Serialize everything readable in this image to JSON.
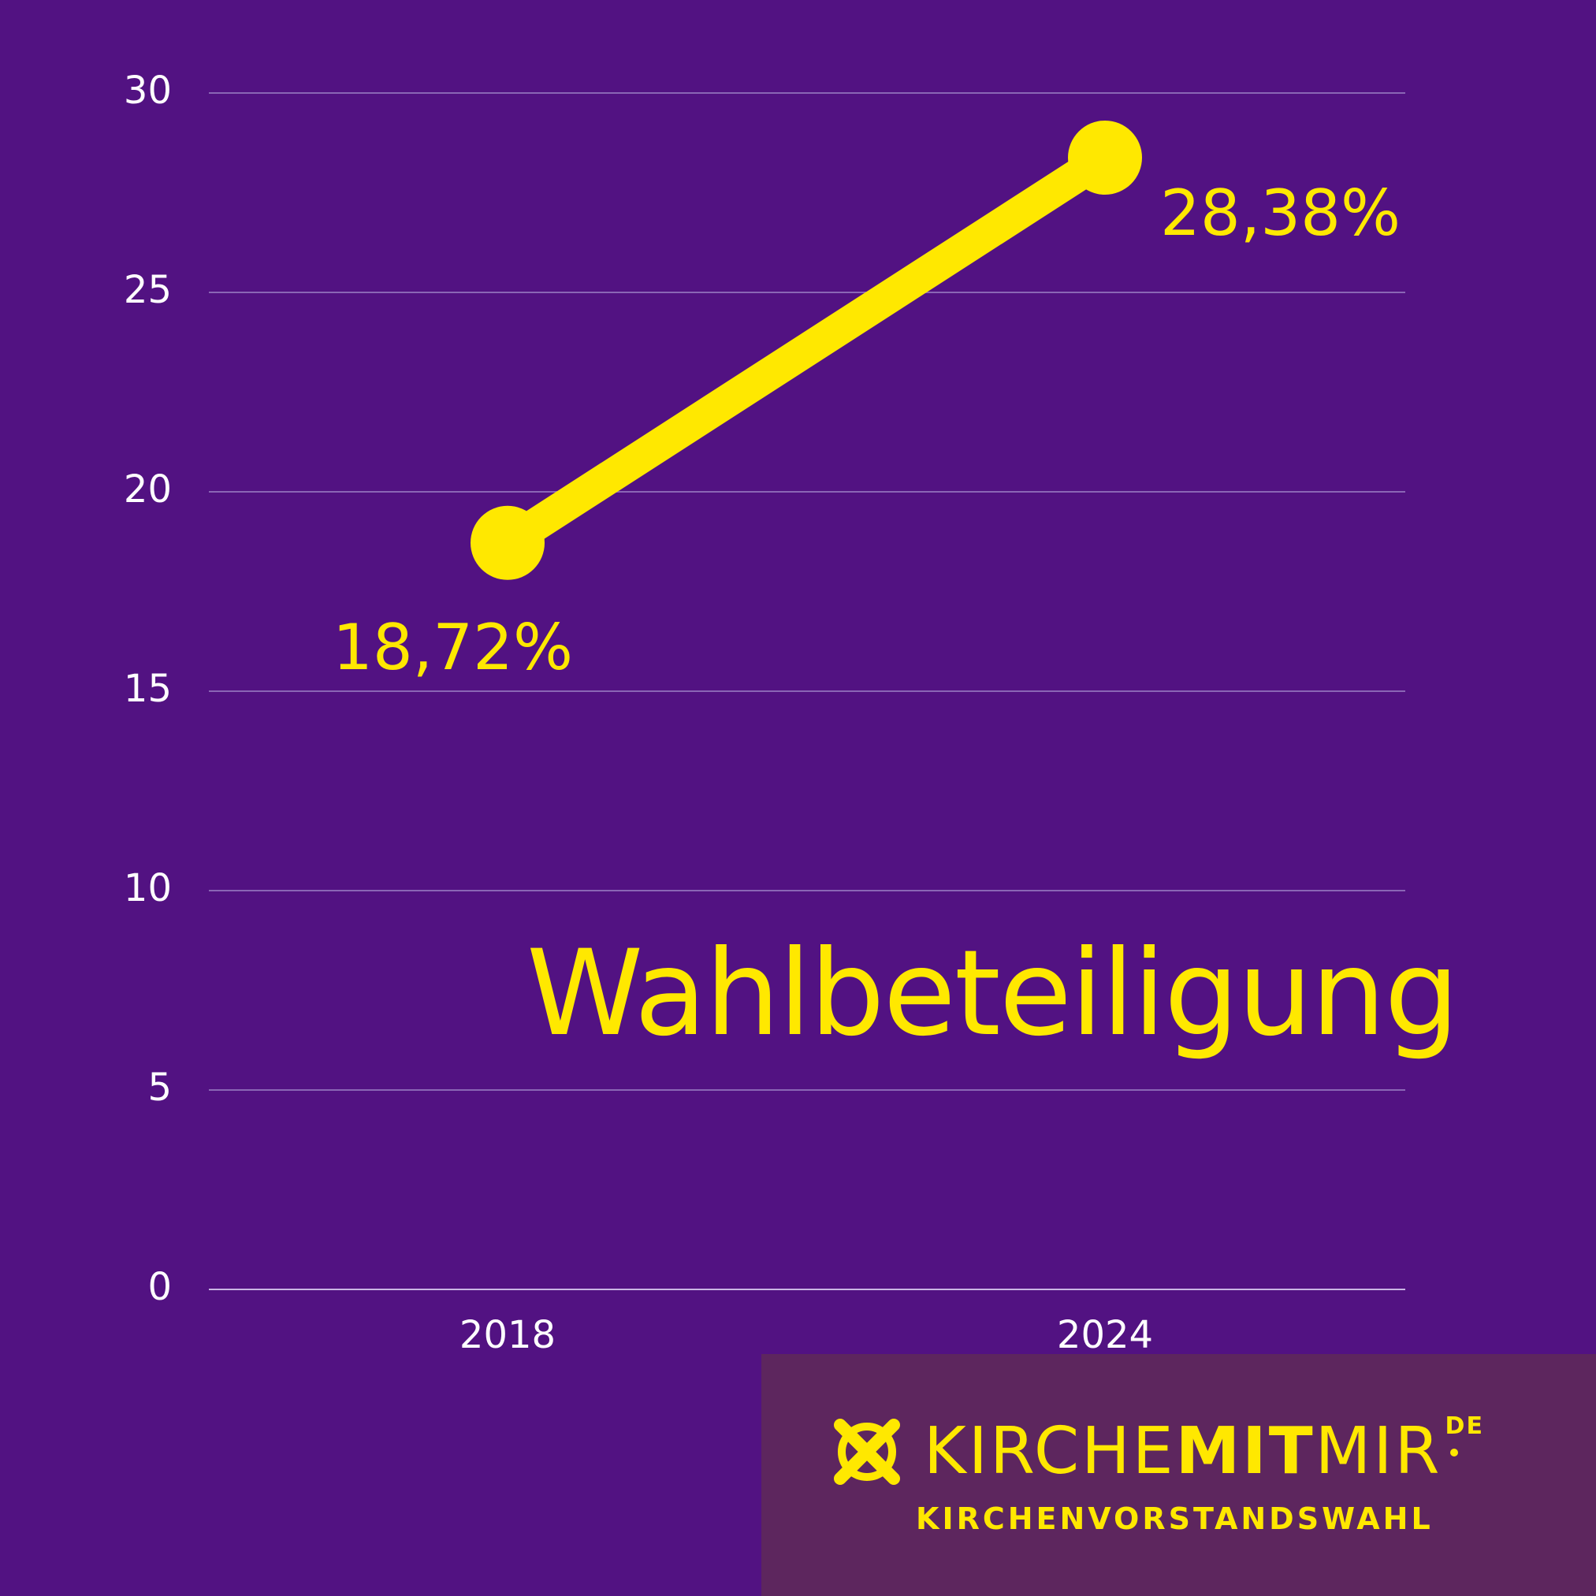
{
  "chart_data": {
    "type": "line",
    "categories": [
      "2018",
      "2024"
    ],
    "values": [
      18.72,
      28.38
    ],
    "data_labels": [
      "18,72%",
      "28,38%"
    ],
    "ylim": [
      0,
      30
    ],
    "y_ticks": [
      "0",
      "5",
      "10",
      "15",
      "20",
      "25",
      "30"
    ],
    "grid": true,
    "line_color": "#ffe800",
    "annotation": "Wahlbeteiligung"
  },
  "brand": {
    "name_prefix": "KIRCHE",
    "name_bold": "MIT",
    "name_suffix": "MIR",
    "tld": "DE",
    "subtitle": "KIRCHENVORSTANDSWAHL",
    "icon": "ballot-cross-icon",
    "accent_color": "#ffe800",
    "background_color": "#5d265e"
  },
  "background_color": "#521282"
}
